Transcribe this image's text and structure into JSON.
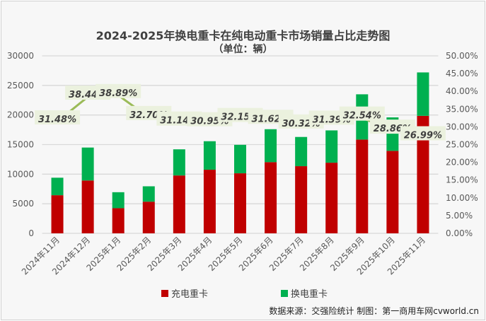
{
  "chart_data": {
    "type": "bar",
    "stacked": true,
    "title": "2024-2025年换电重卡在纯电动重卡市场销量占比走势图",
    "subtitle": "（单位：辆）",
    "categories": [
      "2024年11月",
      "2024年12月",
      "2025年1月",
      "2025年2月",
      "2025年3月",
      "2025年4月",
      "2025年5月",
      "2025年6月",
      "2025年7月",
      "2025年8月",
      "2025年9月",
      "2025年10月",
      "2025年11月"
    ],
    "series": [
      {
        "name": "充电重卡",
        "color": "#C00000",
        "values": [
          6440,
          8930,
          4250,
          5350,
          9780,
          10750,
          10150,
          12030,
          11350,
          11940,
          15850,
          13940,
          19860
        ]
      },
      {
        "name": "换电重卡",
        "color": "#00B050",
        "values": [
          2960,
          5570,
          2700,
          2600,
          4420,
          4820,
          4810,
          5570,
          4940,
          5460,
          7650,
          5660,
          7340
        ]
      }
    ],
    "line": {
      "axis": "right",
      "color": "#9BBB59",
      "values": [
        31.48,
        38.44,
        38.89,
        32.7,
        31.14,
        30.95,
        32.15,
        31.62,
        30.32,
        31.39,
        32.54,
        28.86,
        26.99
      ],
      "labels": [
        "31.48%",
        "38.44%",
        "38.89%",
        "32.70%",
        "31.14%",
        "30.95%",
        "32.15%",
        "31.62%",
        "30.32%",
        "31.39%",
        "32.54%",
        "28.86%",
        "26.99%"
      ]
    },
    "ylim": [
      0,
      30000
    ],
    "yticks": [
      "0",
      "5000",
      "10000",
      "15000",
      "20000",
      "25000",
      "30000"
    ],
    "y2lim": [
      0,
      50
    ],
    "y2ticks": [
      "0.00%",
      "5.00%",
      "10.00%",
      "15.00%",
      "20.00%",
      "25.00%",
      "30.00%",
      "35.00%",
      "40.00%",
      "45.00%",
      "50.00%"
    ],
    "grid": true,
    "legend": "bottom"
  },
  "source": "数据来源：交强险统计 制图：第一商用车网cvworld.cn"
}
